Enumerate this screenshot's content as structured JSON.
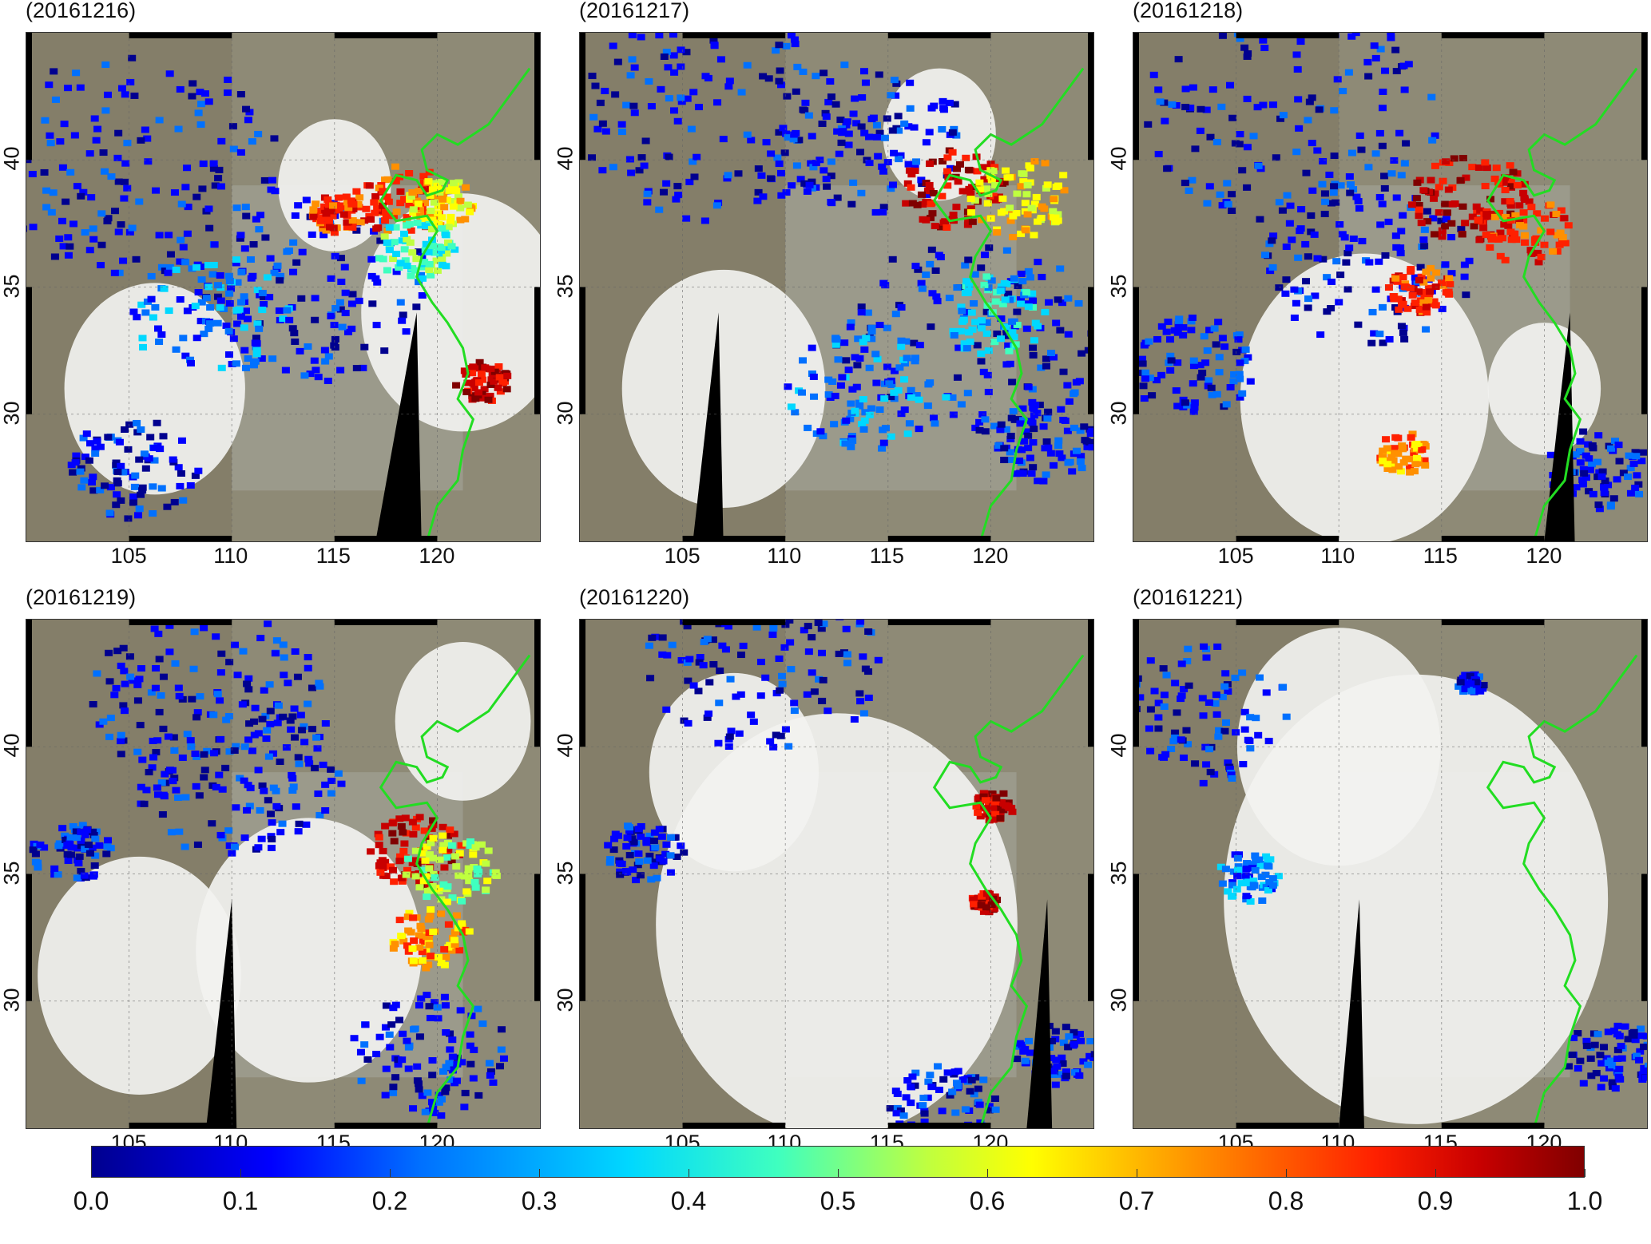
{
  "panels": [
    {
      "title": "(20161216)",
      "scene": "a"
    },
    {
      "title": "(20161217)",
      "scene": "b"
    },
    {
      "title": "(20161218)",
      "scene": "c"
    },
    {
      "title": "(20161219)",
      "scene": "d"
    },
    {
      "title": "(20161220)",
      "scene": "e"
    },
    {
      "title": "(20161221)",
      "scene": "f"
    }
  ],
  "map_extent": {
    "lon": [
      100,
      125
    ],
    "lat": [
      25,
      45
    ]
  },
  "lon_ticks": [
    "105",
    "110",
    "115",
    "120"
  ],
  "lat_ticks": [
    "30",
    "35",
    "40"
  ],
  "colorbar": {
    "min": 0.0,
    "max": 1.0,
    "labels": [
      "0.0",
      "0.1",
      "0.2",
      "0.3",
      "0.4",
      "0.5",
      "0.6",
      "0.7",
      "0.8",
      "0.9",
      "1.0"
    ],
    "colors": [
      "#00008f",
      "#0000ff",
      "#0070ff",
      "#00d8ff",
      "#3fffbf",
      "#bfff3f",
      "#ffff00",
      "#ff9000",
      "#ff2000",
      "#c80000",
      "#800000"
    ]
  },
  "coastline_color": "#22dd22"
}
